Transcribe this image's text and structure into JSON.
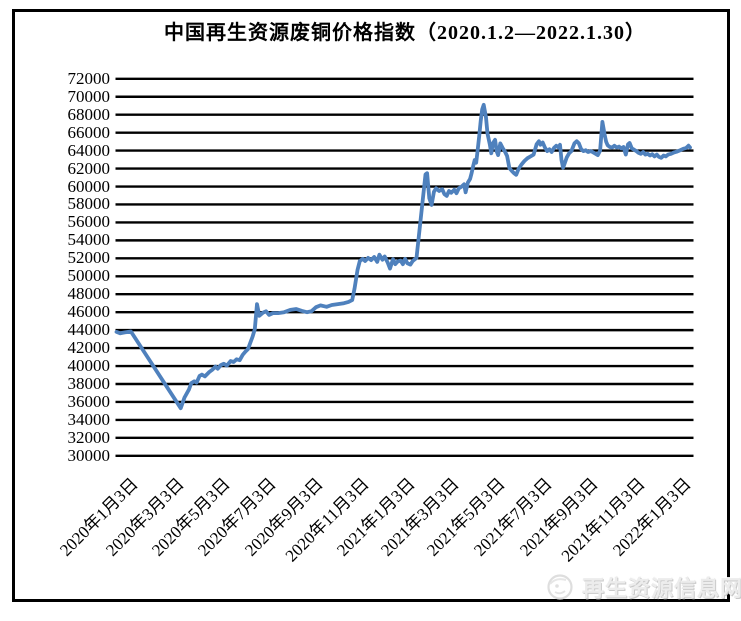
{
  "title": "中国再生资源废铜价格指数（2020.1.2—2022.1.30）",
  "watermark": {
    "text": "再生资源信息网",
    "logo_icon": "swirl-face-logo"
  },
  "colors": {
    "line": "#4F81BD",
    "grid": "#000000",
    "frame": "#000000",
    "watermark_text": "#ececec"
  },
  "chart_data": {
    "type": "line",
    "title": "中国再生资源废铜价格指数（2020.1.2—2022.1.30）",
    "xlabel": "",
    "ylabel": "",
    "legend": "none",
    "grid": "horizontal",
    "ylim": [
      30000,
      72000
    ],
    "y_tick_step": 2000,
    "y_ticks": [
      72000,
      70000,
      68000,
      66000,
      64000,
      62000,
      60000,
      58000,
      56000,
      54000,
      52000,
      50000,
      48000,
      46000,
      44000,
      42000,
      40000,
      38000,
      36000,
      34000,
      32000,
      30000
    ],
    "x_range": [
      "2020-01-02",
      "2022-01-30"
    ],
    "x_ticks": [
      {
        "date": "2020-01-03",
        "label": "2020年1月3日"
      },
      {
        "date": "2020-03-03",
        "label": "2020年3月3日"
      },
      {
        "date": "2020-05-03",
        "label": "2020年5月3日"
      },
      {
        "date": "2020-07-03",
        "label": "2020年7月3日"
      },
      {
        "date": "2020-09-03",
        "label": "2020年9月3日"
      },
      {
        "date": "2020-11-03",
        "label": "2020年11月3日"
      },
      {
        "date": "2021-01-03",
        "label": "2021年1月3日"
      },
      {
        "date": "2021-03-03",
        "label": "2021年3月3日"
      },
      {
        "date": "2021-05-03",
        "label": "2021年5月3日"
      },
      {
        "date": "2021-07-03",
        "label": "2021年7月3日"
      },
      {
        "date": "2021-09-03",
        "label": "2021年9月3日"
      },
      {
        "date": "2021-11-03",
        "label": "2021年11月3日"
      },
      {
        "date": "2022-01-03",
        "label": "2022年1月3日"
      }
    ],
    "points": [
      [
        "2020-01-02",
        43800
      ],
      [
        "2020-01-07",
        43650
      ],
      [
        "2020-01-13",
        43750
      ],
      [
        "2020-01-21",
        43850
      ],
      [
        "2020-03-27",
        35300
      ],
      [
        "2020-04-01",
        36500
      ],
      [
        "2020-04-07",
        37400
      ],
      [
        "2020-04-10",
        38100
      ],
      [
        "2020-04-14",
        38300
      ],
      [
        "2020-04-17",
        38150
      ],
      [
        "2020-04-21",
        38900
      ],
      [
        "2020-04-24",
        39050
      ],
      [
        "2020-04-28",
        38850
      ],
      [
        "2020-05-04",
        39350
      ],
      [
        "2020-05-08",
        39600
      ],
      [
        "2020-05-12",
        39950
      ],
      [
        "2020-05-15",
        39700
      ],
      [
        "2020-05-19",
        40100
      ],
      [
        "2020-05-23",
        40250
      ],
      [
        "2020-05-27",
        40050
      ],
      [
        "2020-06-01",
        40550
      ],
      [
        "2020-06-05",
        40450
      ],
      [
        "2020-06-09",
        40750
      ],
      [
        "2020-06-13",
        40650
      ],
      [
        "2020-06-17",
        41250
      ],
      [
        "2020-06-20",
        41550
      ],
      [
        "2020-06-24",
        41900
      ],
      [
        "2020-06-27",
        42550
      ],
      [
        "2020-06-30",
        43250
      ],
      [
        "2020-07-03",
        44100
      ],
      [
        "2020-07-06",
        46900
      ],
      [
        "2020-07-09",
        45600
      ],
      [
        "2020-07-14",
        45950
      ],
      [
        "2020-07-18",
        46100
      ],
      [
        "2020-07-22",
        45700
      ],
      [
        "2020-07-27",
        45900
      ],
      [
        "2020-08-03",
        45900
      ],
      [
        "2020-08-11",
        46000
      ],
      [
        "2020-08-19",
        46250
      ],
      [
        "2020-08-27",
        46350
      ],
      [
        "2020-09-03",
        46150
      ],
      [
        "2020-09-10",
        46000
      ],
      [
        "2020-09-16",
        46100
      ],
      [
        "2020-09-22",
        46550
      ],
      [
        "2020-09-28",
        46750
      ],
      [
        "2020-10-06",
        46600
      ],
      [
        "2020-10-13",
        46800
      ],
      [
        "2020-10-21",
        46900
      ],
      [
        "2020-10-29",
        47000
      ],
      [
        "2020-11-04",
        47150
      ],
      [
        "2020-11-09",
        47350
      ],
      [
        "2020-11-12",
        48600
      ],
      [
        "2020-11-16",
        50700
      ],
      [
        "2020-11-19",
        51700
      ],
      [
        "2020-11-23",
        51950
      ],
      [
        "2020-11-26",
        51700
      ],
      [
        "2020-11-30",
        52050
      ],
      [
        "2020-12-04",
        51800
      ],
      [
        "2020-12-08",
        52150
      ],
      [
        "2020-12-12",
        51600
      ],
      [
        "2020-12-15",
        52400
      ],
      [
        "2020-12-19",
        51850
      ],
      [
        "2020-12-22",
        52200
      ],
      [
        "2020-12-26",
        51500
      ],
      [
        "2020-12-29",
        50850
      ],
      [
        "2021-01-02",
        51900
      ],
      [
        "2021-01-05",
        51350
      ],
      [
        "2021-01-08",
        51650
      ],
      [
        "2021-01-12",
        51750
      ],
      [
        "2021-01-15",
        51350
      ],
      [
        "2021-01-18",
        51950
      ],
      [
        "2021-01-21",
        51450
      ],
      [
        "2021-01-25",
        51300
      ],
      [
        "2021-01-28",
        51700
      ],
      [
        "2021-02-02",
        52050
      ],
      [
        "2021-02-14",
        61350
      ],
      [
        "2021-02-16",
        61480
      ],
      [
        "2021-02-19",
        58700
      ],
      [
        "2021-02-22",
        57950
      ],
      [
        "2021-02-25",
        59400
      ],
      [
        "2021-02-28",
        59800
      ],
      [
        "2021-03-04",
        59500
      ],
      [
        "2021-03-08",
        59700
      ],
      [
        "2021-03-11",
        59150
      ],
      [
        "2021-03-14",
        58950
      ],
      [
        "2021-03-17",
        59500
      ],
      [
        "2021-03-20",
        59300
      ],
      [
        "2021-03-24",
        59650
      ],
      [
        "2021-03-27",
        59250
      ],
      [
        "2021-03-30",
        59800
      ],
      [
        "2021-04-02",
        59950
      ],
      [
        "2021-04-06",
        60250
      ],
      [
        "2021-04-08",
        59350
      ],
      [
        "2021-04-11",
        60450
      ],
      [
        "2021-04-14",
        60850
      ],
      [
        "2021-04-16",
        61500
      ],
      [
        "2021-04-18",
        62250
      ],
      [
        "2021-04-20",
        62950
      ],
      [
        "2021-04-22",
        62650
      ],
      [
        "2021-04-24",
        64100
      ],
      [
        "2021-04-26",
        65600
      ],
      [
        "2021-04-28",
        67300
      ],
      [
        "2021-04-30",
        68600
      ],
      [
        "2021-05-02",
        69100
      ],
      [
        "2021-05-05",
        67700
      ],
      [
        "2021-05-07",
        65900
      ],
      [
        "2021-05-10",
        64700
      ],
      [
        "2021-05-12",
        63700
      ],
      [
        "2021-05-14",
        64800
      ],
      [
        "2021-05-17",
        65200
      ],
      [
        "2021-05-19",
        63950
      ],
      [
        "2021-05-21",
        63500
      ],
      [
        "2021-05-24",
        64800
      ],
      [
        "2021-05-27",
        64300
      ],
      [
        "2021-05-30",
        63900
      ],
      [
        "2021-06-02",
        63400
      ],
      [
        "2021-06-05",
        62050
      ],
      [
        "2021-06-08",
        61750
      ],
      [
        "2021-06-11",
        61500
      ],
      [
        "2021-06-14",
        61300
      ],
      [
        "2021-06-17",
        61950
      ],
      [
        "2021-06-21",
        62450
      ],
      [
        "2021-06-25",
        62850
      ],
      [
        "2021-06-29",
        63150
      ],
      [
        "2021-07-03",
        63350
      ],
      [
        "2021-07-07",
        63550
      ],
      [
        "2021-07-11",
        64700
      ],
      [
        "2021-07-14",
        65050
      ],
      [
        "2021-07-16",
        64650
      ],
      [
        "2021-07-19",
        64900
      ],
      [
        "2021-07-22",
        64350
      ],
      [
        "2021-07-25",
        63950
      ],
      [
        "2021-07-28",
        64150
      ],
      [
        "2021-07-31",
        63850
      ],
      [
        "2021-08-03",
        64300
      ],
      [
        "2021-08-06",
        64550
      ],
      [
        "2021-08-09",
        64350
      ],
      [
        "2021-08-11",
        64650
      ],
      [
        "2021-08-13",
        62950
      ],
      [
        "2021-08-15",
        62100
      ],
      [
        "2021-08-17",
        62550
      ],
      [
        "2021-08-20",
        63250
      ],
      [
        "2021-08-23",
        63700
      ],
      [
        "2021-08-26",
        63950
      ],
      [
        "2021-08-30",
        64800
      ],
      [
        "2021-09-02",
        65050
      ],
      [
        "2021-09-05",
        64800
      ],
      [
        "2021-09-08",
        64150
      ],
      [
        "2021-09-11",
        63950
      ],
      [
        "2021-09-14",
        64050
      ],
      [
        "2021-09-17",
        63850
      ],
      [
        "2021-09-21",
        63950
      ],
      [
        "2021-09-25",
        63750
      ],
      [
        "2021-09-28",
        63600
      ],
      [
        "2021-09-30",
        63500
      ],
      [
        "2021-10-03",
        64000
      ],
      [
        "2021-10-06",
        67200
      ],
      [
        "2021-10-09",
        65800
      ],
      [
        "2021-10-11",
        65000
      ],
      [
        "2021-10-13",
        64600
      ],
      [
        "2021-10-16",
        64400
      ],
      [
        "2021-10-19",
        64350
      ],
      [
        "2021-10-22",
        64550
      ],
      [
        "2021-10-25",
        64350
      ],
      [
        "2021-10-28",
        64450
      ],
      [
        "2021-10-31",
        64250
      ],
      [
        "2021-11-03",
        64400
      ],
      [
        "2021-11-06",
        63550
      ],
      [
        "2021-11-09",
        64700
      ],
      [
        "2021-11-11",
        64850
      ],
      [
        "2021-11-14",
        64250
      ],
      [
        "2021-11-17",
        64100
      ],
      [
        "2021-11-20",
        63950
      ],
      [
        "2021-11-23",
        63750
      ],
      [
        "2021-11-26",
        63650
      ],
      [
        "2021-11-29",
        63850
      ],
      [
        "2021-12-02",
        63550
      ],
      [
        "2021-12-05",
        63650
      ],
      [
        "2021-12-08",
        63450
      ],
      [
        "2021-12-11",
        63600
      ],
      [
        "2021-12-14",
        63350
      ],
      [
        "2021-12-17",
        63550
      ],
      [
        "2021-12-20",
        63300
      ],
      [
        "2021-12-23",
        63200
      ],
      [
        "2021-12-26",
        63450
      ],
      [
        "2021-12-29",
        63350
      ],
      [
        "2022-01-01",
        63550
      ],
      [
        "2022-01-05",
        63650
      ],
      [
        "2022-01-09",
        63800
      ],
      [
        "2022-01-13",
        63900
      ],
      [
        "2022-01-17",
        64050
      ],
      [
        "2022-01-21",
        64200
      ],
      [
        "2022-01-25",
        64300
      ],
      [
        "2022-01-28",
        64550
      ],
      [
        "2022-01-30",
        64350
      ]
    ]
  }
}
